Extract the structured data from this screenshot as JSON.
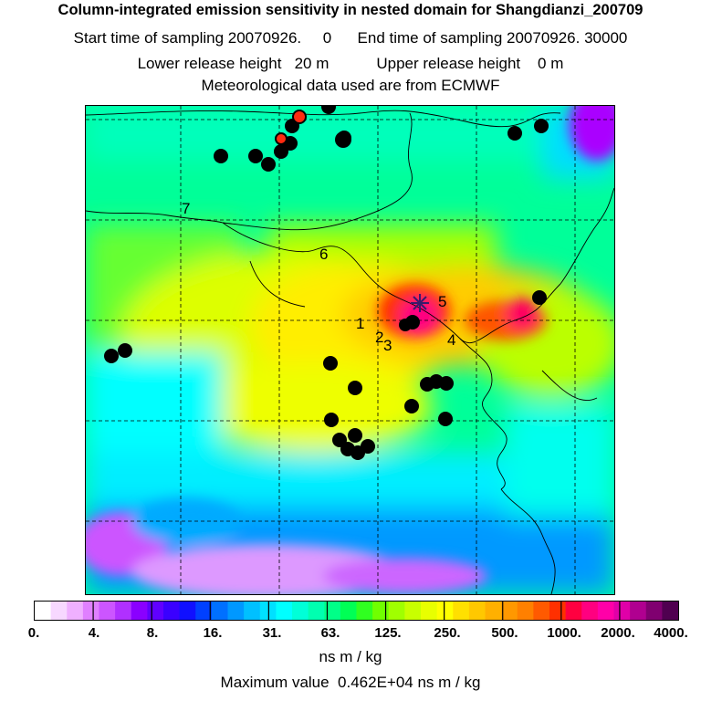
{
  "header": {
    "title": "Column-integrated emission sensitivity in nested domain for Shangdianzi_200709",
    "sampling_line": "Start time of sampling 20070926.     0      End time of sampling 20070926. 30000",
    "release_line": "Lower release height   20 m           Upper release height    0 m",
    "met_line": "Meteorological data used are from ECMWF"
  },
  "map": {
    "site_labels": [
      "1",
      "2",
      "3",
      "4",
      "5",
      "6",
      "7"
    ],
    "colors": {
      "background_field": "#00ff99",
      "high_magenta": "#ff0080",
      "station_fill": "#000000",
      "highlight_station_fill": "#ff2a10"
    }
  },
  "colorbar": {
    "tick_labels": [
      "0.",
      "4.",
      "8.",
      "16.",
      "31.",
      "63.",
      "125.",
      "250.",
      "500.",
      "1000.",
      "2000.",
      "4000."
    ],
    "colors": [
      "#ffffff",
      "#f7d8ff",
      "#efb0ff",
      "#e080ff",
      "#cc55ff",
      "#b030ff",
      "#8a00ff",
      "#6000ff",
      "#3a00ff",
      "#1010ff",
      "#0040ff",
      "#0070ff",
      "#0098ff",
      "#00c0ff",
      "#00e0ff",
      "#00ffff",
      "#00ffd8",
      "#00ffb0",
      "#00ff88",
      "#00ff55",
      "#30ff20",
      "#70ff00",
      "#a0ff00",
      "#c8ff00",
      "#e8ff00",
      "#ffff00",
      "#ffe000",
      "#ffc800",
      "#ffb000",
      "#ff9800",
      "#ff8000",
      "#ff5a00",
      "#ff3000",
      "#ff0040",
      "#ff0080",
      "#ff00a8",
      "#e000a8",
      "#b00090",
      "#800070",
      "#500050"
    ],
    "units": "ns m / kg"
  },
  "footer": {
    "max_value": "Maximum value  0.462E+04 ns m / kg"
  }
}
